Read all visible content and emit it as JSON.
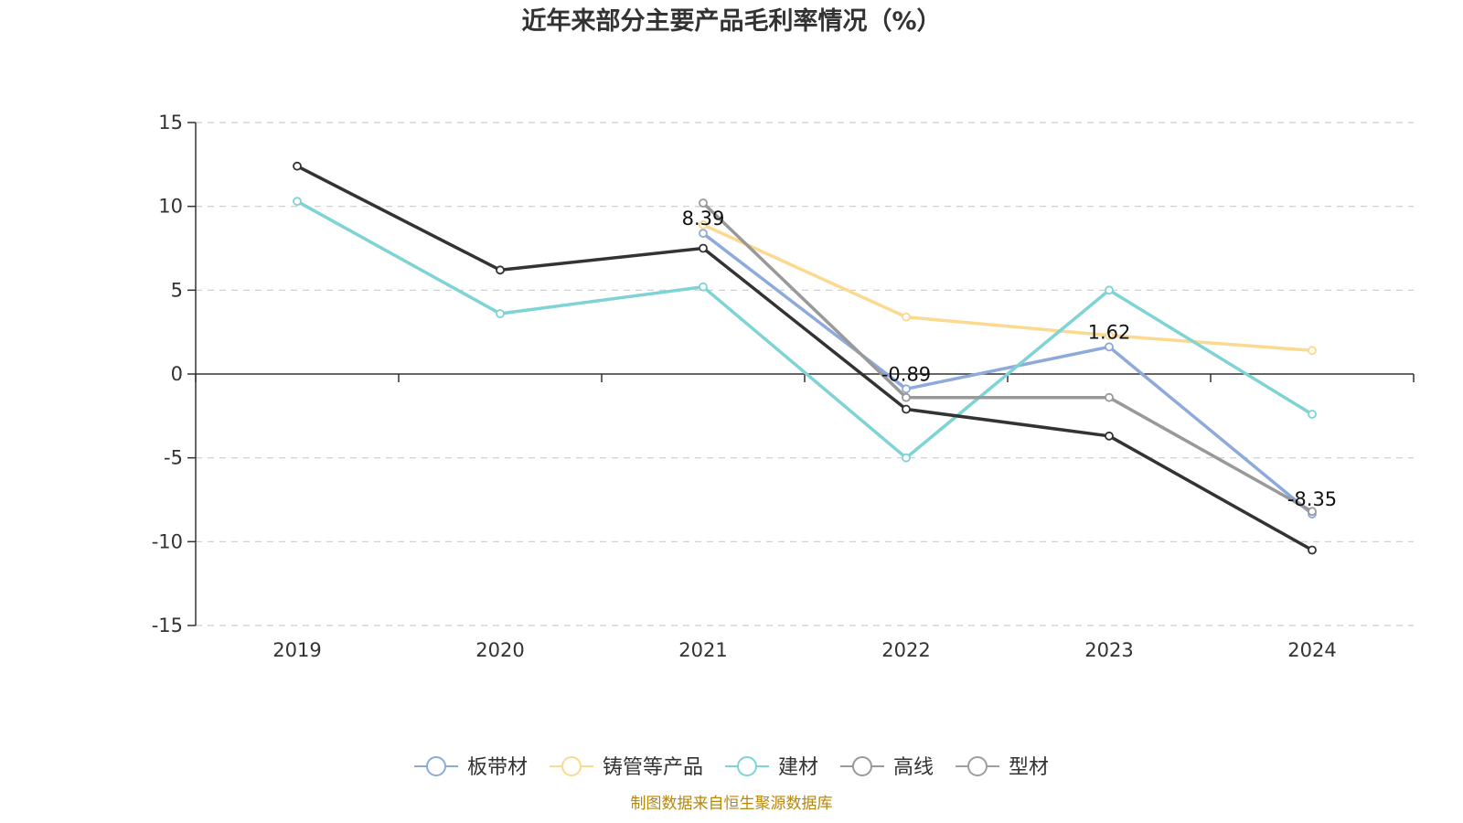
{
  "chart_data": {
    "type": "line",
    "title": "近年来部分主要产品毛利率情况（%）",
    "categories": [
      "2019",
      "2020",
      "2021",
      "2022",
      "2023",
      "2024"
    ],
    "ylim": [
      -15,
      15
    ],
    "yticks": [
      -15,
      -10,
      -5,
      0,
      5,
      10,
      15
    ],
    "grid": true,
    "legend_position": "bottom",
    "series": [
      {
        "name": "板带材",
        "color": "#8eaadb",
        "values": [
          null,
          null,
          8.39,
          -0.89,
          1.62,
          -8.35
        ]
      },
      {
        "name": "铸管等产品",
        "color": "#fbd990",
        "values": [
          null,
          null,
          8.9,
          3.4,
          2.3,
          1.4
        ]
      },
      {
        "name": "建材",
        "color": "#7ed3d4",
        "values": [
          10.3,
          3.6,
          5.2,
          -5.0,
          5.0,
          -2.4
        ]
      },
      {
        "name": "高线",
        "color": "#999999",
        "values": [
          null,
          null,
          10.2,
          -1.4,
          -1.4,
          -8.2
        ]
      },
      {
        "name": "型材",
        "color": "#333333",
        "values": [
          12.4,
          6.2,
          7.5,
          -2.1,
          -3.7,
          -10.5
        ]
      }
    ],
    "legend_symbol_color": "#9e9e9e",
    "data_labels": [
      {
        "series": "板带材",
        "index": 2,
        "text": "8.39"
      },
      {
        "series": "板带材",
        "index": 3,
        "text": "-0.89"
      },
      {
        "series": "板带材",
        "index": 4,
        "text": "1.62"
      },
      {
        "series": "板带材",
        "index": 5,
        "text": "-8.35"
      }
    ]
  },
  "source_text": "制图数据来自恒生聚源数据库"
}
